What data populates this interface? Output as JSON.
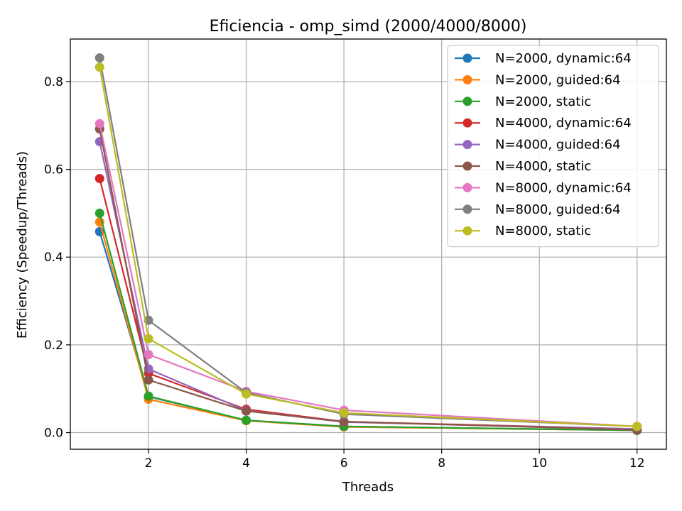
{
  "chart_data": {
    "type": "line",
    "title": "Eficiencia - omp_simd (2000/4000/8000)",
    "xlabel": "Threads",
    "ylabel": "Efficiency (Speedup/Threads)",
    "xlim": [
      0.4,
      12.6
    ],
    "ylim": [
      -0.038,
      0.897
    ],
    "xticks": [
      2,
      4,
      6,
      8,
      10,
      12
    ],
    "yticks": [
      0.0,
      0.2,
      0.4,
      0.6,
      0.8
    ],
    "x": [
      1,
      2,
      4,
      6,
      12
    ],
    "grid": true,
    "legend_position": "top-right",
    "series": [
      {
        "name": "N=2000, dynamic:64",
        "color": "#1f77b4",
        "values": [
          0.458,
          0.082,
          0.028,
          0.014,
          0.005
        ]
      },
      {
        "name": "N=2000, guided:64",
        "color": "#ff7f0e",
        "values": [
          0.48,
          0.076,
          0.027,
          0.013,
          0.005
        ]
      },
      {
        "name": "N=2000, static",
        "color": "#2ca02c",
        "values": [
          0.5,
          0.083,
          0.028,
          0.014,
          0.005
        ]
      },
      {
        "name": "N=4000, dynamic:64",
        "color": "#d62728",
        "values": [
          0.579,
          0.135,
          0.053,
          0.025,
          0.008
        ]
      },
      {
        "name": "N=4000, guided:64",
        "color": "#9467bd",
        "values": [
          0.663,
          0.145,
          0.05,
          0.024,
          0.008
        ]
      },
      {
        "name": "N=4000, static",
        "color": "#8c564b",
        "values": [
          0.692,
          0.12,
          0.049,
          0.025,
          0.006
        ]
      },
      {
        "name": "N=8000, dynamic:64",
        "color": "#e377c2",
        "values": [
          0.704,
          0.178,
          0.094,
          0.051,
          0.014
        ]
      },
      {
        "name": "N=8000, guided:64",
        "color": "#7f7f7f",
        "values": [
          0.854,
          0.256,
          0.091,
          0.042,
          0.014
        ]
      },
      {
        "name": "N=8000, static",
        "color": "#bcbd22",
        "values": [
          0.833,
          0.214,
          0.088,
          0.045,
          0.014
        ]
      }
    ]
  }
}
